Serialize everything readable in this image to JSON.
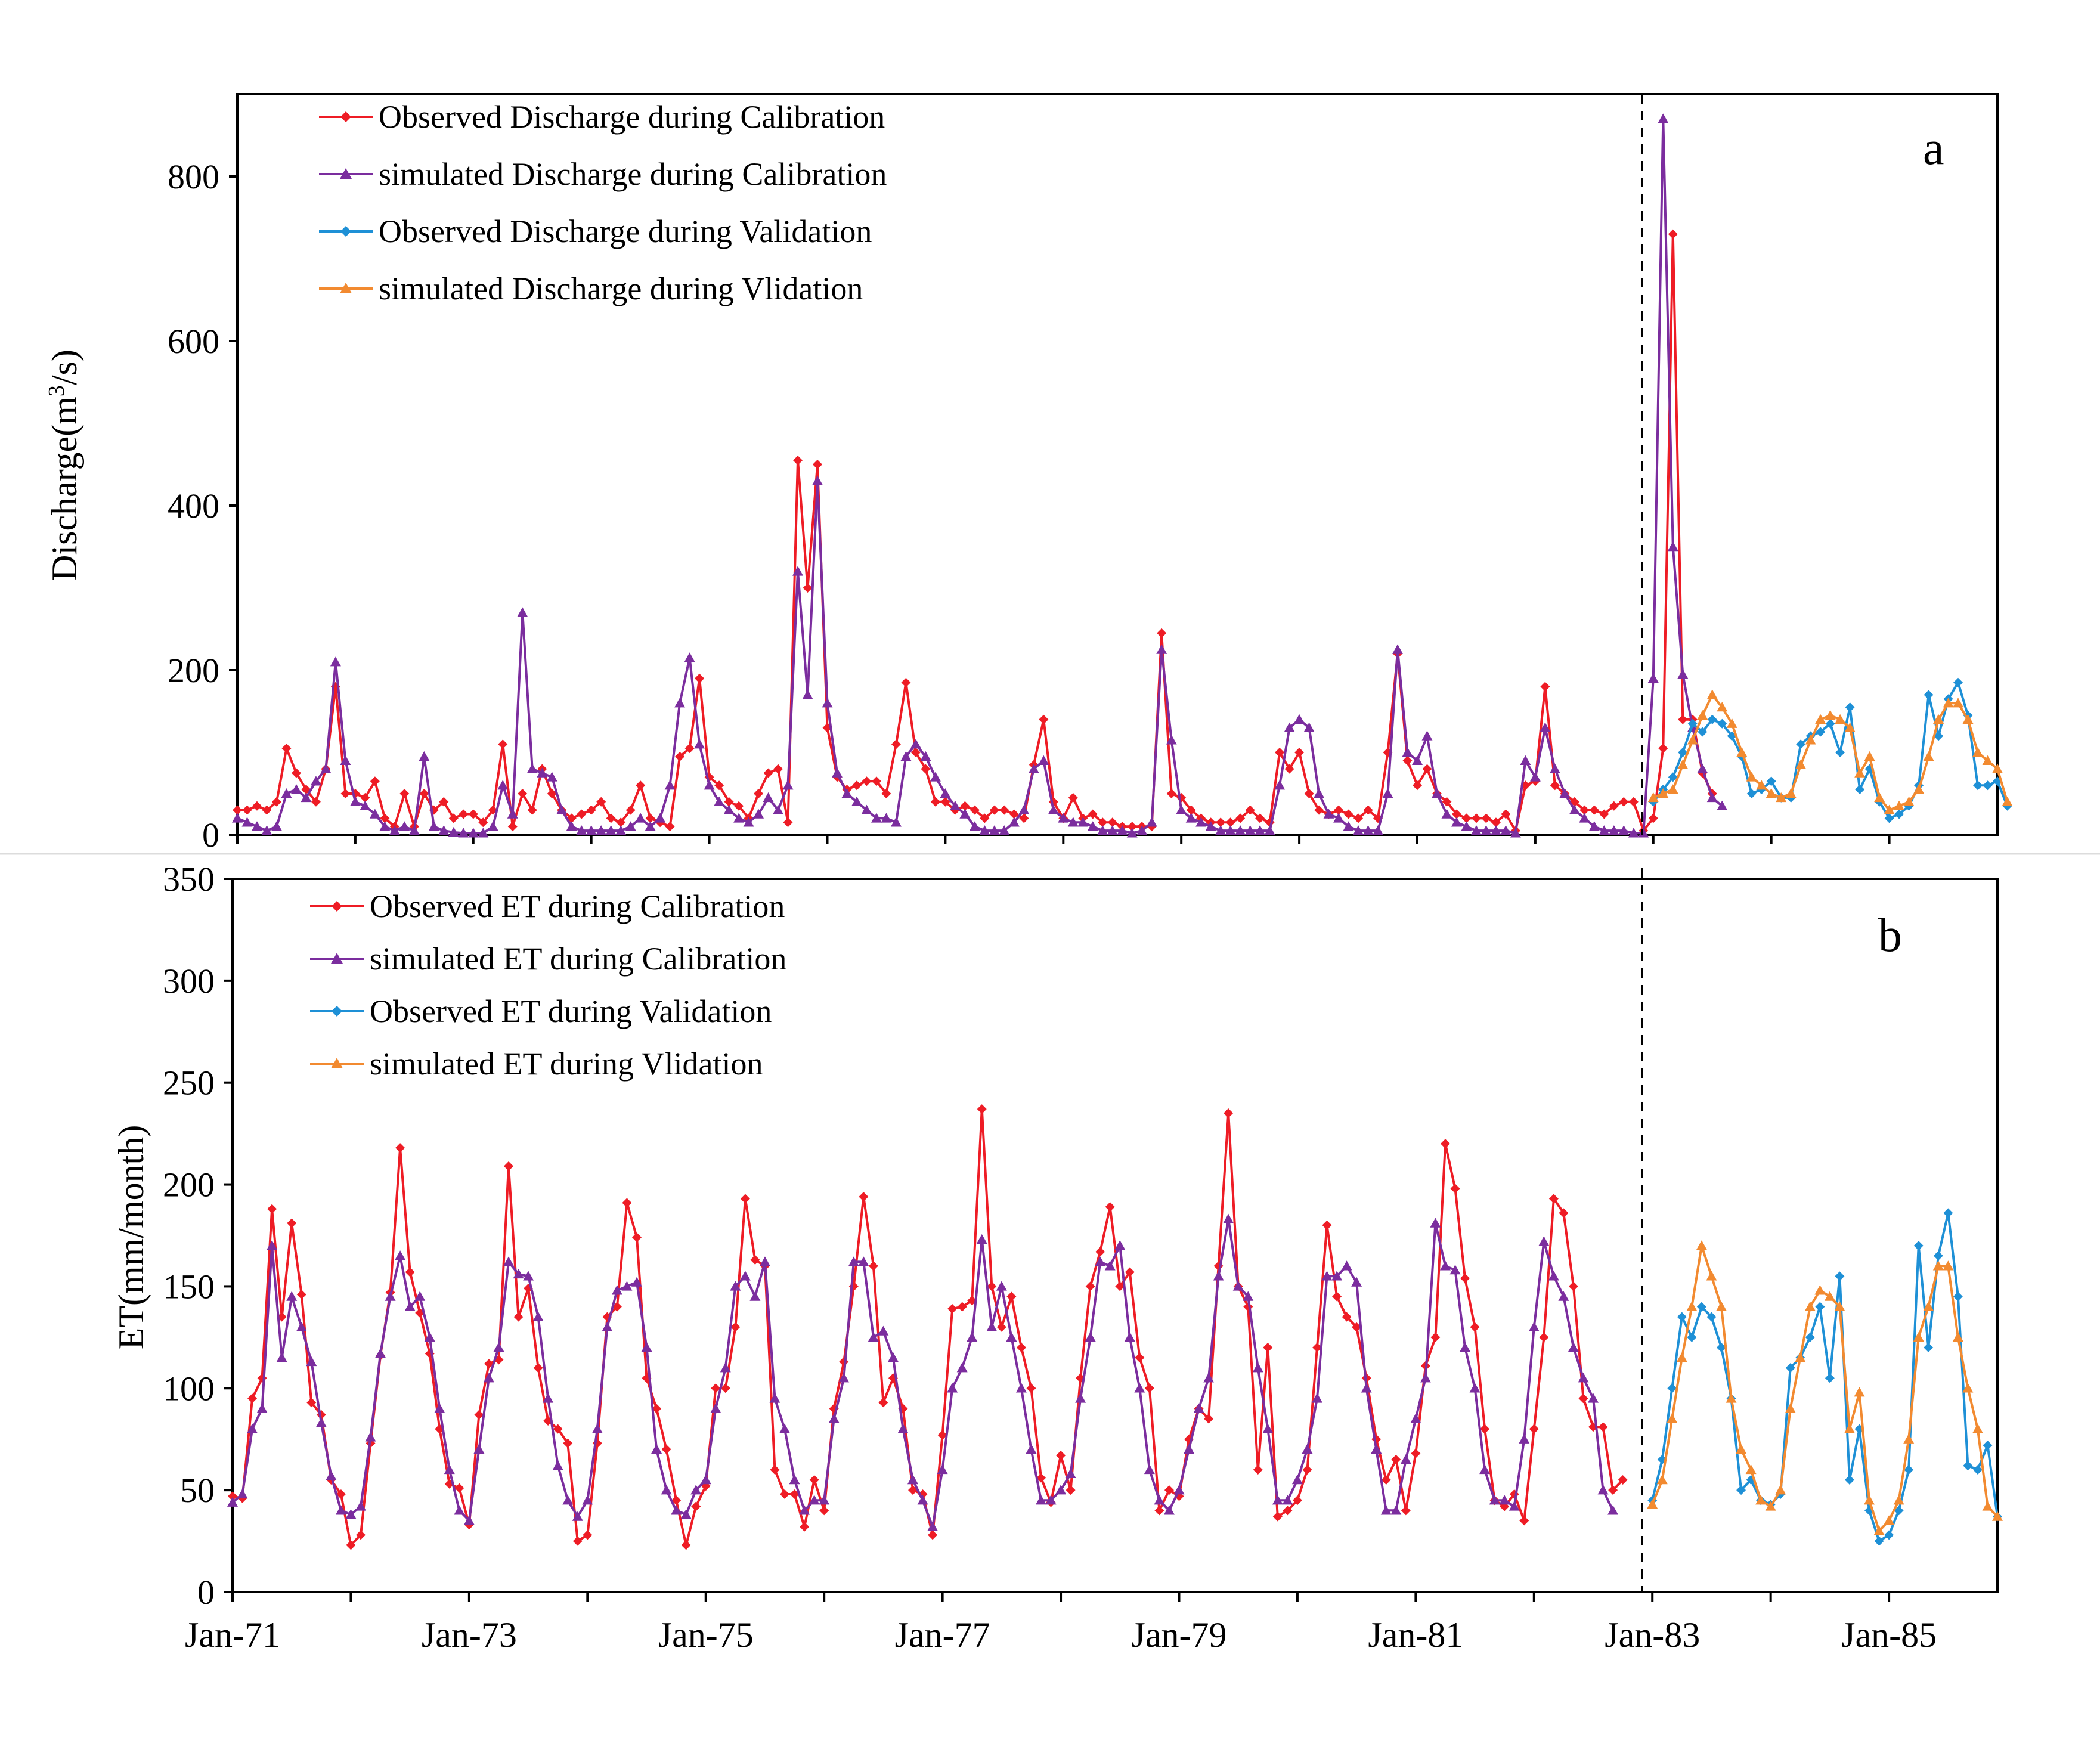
{
  "chart_data": [
    {
      "type": "line",
      "panel_label": "a",
      "ylabel_main": "Discharge(m",
      "ylabel_sup": "3",
      "ylabel_tail": "/s)",
      "ylim": [
        0,
        900
      ],
      "yticks": [
        "0",
        "200",
        "400",
        "600",
        "800"
      ],
      "ytick_values": [
        0,
        200,
        400,
        600,
        800
      ],
      "x_range_months": [
        "Jan-71",
        "Dec-85"
      ],
      "split_at": "Jan-83",
      "legend_position": "top-left",
      "series": [
        {
          "name": "Observed Discharge during Calibration",
          "color": "#ee1c25",
          "marker": "diamond",
          "start": "Jan-71",
          "values": [
            30,
            30,
            35,
            30,
            40,
            105,
            75,
            55,
            40,
            80,
            180,
            50,
            50,
            45,
            65,
            20,
            10,
            50,
            10,
            50,
            30,
            40,
            20,
            25,
            25,
            15,
            30,
            110,
            10,
            50,
            30,
            80,
            50,
            30,
            20,
            25,
            30,
            40,
            20,
            15,
            30,
            60,
            20,
            15,
            10,
            95,
            105,
            190,
            70,
            60,
            40,
            35,
            20,
            50,
            75,
            80,
            15,
            455,
            300,
            450,
            130,
            70,
            55,
            60,
            65,
            65,
            50,
            110,
            185,
            100,
            80,
            40,
            40,
            30,
            35,
            30,
            20,
            30,
            30,
            25,
            20,
            85,
            140,
            40,
            20,
            45,
            20,
            25,
            15,
            15,
            10,
            10,
            10,
            10,
            245,
            50,
            45,
            30,
            20,
            15,
            15,
            15,
            20,
            30,
            20,
            15,
            100,
            80,
            100,
            50,
            30,
            25,
            30,
            25,
            20,
            30,
            20,
            100,
            220,
            90,
            60,
            80,
            50,
            40,
            25,
            20,
            20,
            20,
            15,
            25,
            5,
            60,
            65,
            180,
            60,
            50,
            40,
            30,
            30,
            25,
            35,
            40,
            40,
            5,
            20,
            105,
            730,
            140,
            140,
            75,
            50
          ]
        },
        {
          "name": "simulated Discharge during Calibration",
          "color": "#7b2d9e",
          "marker": "triangle",
          "start": "Jan-71",
          "values": [
            20,
            15,
            10,
            5,
            10,
            50,
            55,
            45,
            65,
            80,
            210,
            90,
            40,
            35,
            25,
            10,
            5,
            10,
            5,
            95,
            10,
            5,
            3,
            2,
            2,
            2,
            10,
            60,
            25,
            270,
            80,
            75,
            70,
            30,
            10,
            5,
            5,
            5,
            5,
            5,
            10,
            20,
            10,
            20,
            60,
            160,
            215,
            110,
            60,
            40,
            30,
            20,
            15,
            25,
            45,
            30,
            60,
            320,
            170,
            430,
            160,
            75,
            50,
            40,
            30,
            20,
            20,
            15,
            95,
            110,
            95,
            70,
            50,
            35,
            25,
            10,
            5,
            5,
            5,
            15,
            30,
            80,
            90,
            30,
            20,
            15,
            15,
            10,
            5,
            5,
            5,
            2,
            5,
            15,
            225,
            115,
            30,
            20,
            15,
            10,
            5,
            5,
            5,
            5,
            5,
            5,
            60,
            130,
            140,
            130,
            50,
            25,
            20,
            10,
            5,
            5,
            5,
            50,
            225,
            100,
            90,
            120,
            50,
            25,
            15,
            10,
            5,
            5,
            5,
            5,
            2,
            90,
            70,
            130,
            80,
            50,
            30,
            20,
            10,
            5,
            5,
            5,
            2,
            2,
            190,
            870,
            350,
            195,
            130,
            80,
            45,
            35
          ]
        },
        {
          "name": "Observed Discharge during Validation",
          "color": "#1e90d6",
          "marker": "diamond",
          "start": "Jan-83",
          "values": [
            40,
            55,
            70,
            100,
            135,
            125,
            140,
            135,
            120,
            95,
            50,
            55,
            65,
            45,
            45,
            110,
            120,
            125,
            135,
            100,
            155,
            55,
            80,
            40,
            20,
            25,
            35,
            60,
            170,
            120,
            165,
            185,
            145,
            60,
            60,
            65,
            35
          ]
        },
        {
          "name": "simulated Discharge during Vlidation",
          "color": "#f28a30",
          "marker": "triangle",
          "start": "Jan-83",
          "values": [
            45,
            50,
            55,
            85,
            115,
            145,
            170,
            155,
            135,
            100,
            70,
            60,
            50,
            45,
            50,
            85,
            115,
            140,
            145,
            140,
            130,
            75,
            95,
            45,
            30,
            35,
            40,
            55,
            95,
            140,
            160,
            160,
            140,
            100,
            90,
            80,
            40
          ]
        }
      ]
    },
    {
      "type": "line",
      "panel_label": "b",
      "ylabel": "ET(mm/month)",
      "ylim": [
        0,
        350
      ],
      "yticks": [
        "0",
        "50",
        "100",
        "150",
        "200",
        "250",
        "300",
        "350"
      ],
      "ytick_values": [
        0,
        50,
        100,
        150,
        200,
        250,
        300,
        350
      ],
      "xtick_labels": [
        "Jan-71",
        "Jan-73",
        "Jan-75",
        "Jan-77",
        "Jan-79",
        "Jan-81",
        "Jan-83",
        "Jan-85"
      ],
      "x_range_months": [
        "Jan-71",
        "Dec-85"
      ],
      "split_at": "Jan-83",
      "legend_position": "top-left",
      "series": [
        {
          "name": "Observed ET during Calibration",
          "color": "#ee1c25",
          "marker": "diamond",
          "start": "Jan-71",
          "values": [
            47,
            46,
            95,
            105,
            188,
            135,
            181,
            146,
            93,
            87,
            55,
            48,
            23,
            28,
            73,
            116,
            147,
            218,
            157,
            137,
            117,
            80,
            53,
            51,
            33,
            87,
            112,
            114,
            209,
            135,
            149,
            110,
            84,
            80,
            73,
            25,
            28,
            73,
            135,
            140,
            191,
            174,
            105,
            90,
            70,
            45,
            23,
            42,
            52,
            100,
            100,
            130,
            193,
            163,
            160,
            60,
            48,
            48,
            32,
            55,
            40,
            90,
            113,
            150,
            194,
            160,
            93,
            105,
            90,
            50,
            48,
            28,
            77,
            139,
            140,
            143,
            237,
            150,
            130,
            145,
            120,
            100,
            56,
            44,
            67,
            50,
            105,
            150,
            167,
            189,
            150,
            157,
            115,
            100,
            40,
            50,
            47,
            75,
            90,
            85,
            160,
            235,
            150,
            140,
            60,
            120,
            37,
            40,
            45,
            60,
            120,
            180,
            145,
            135,
            130,
            105,
            75,
            55,
            65,
            40,
            68,
            111,
            125,
            220,
            198,
            154,
            130,
            80,
            45,
            42,
            48,
            35,
            80,
            125,
            193,
            186,
            150,
            95,
            81,
            81,
            50,
            55
          ]
        },
        {
          "name": "simulated ET during Calibration",
          "color": "#7b2d9e",
          "marker": "triangle",
          "start": "Jan-71",
          "values": [
            44,
            48,
            80,
            90,
            170,
            115,
            145,
            130,
            113,
            83,
            57,
            40,
            38,
            42,
            76,
            117,
            145,
            165,
            140,
            145,
            125,
            90,
            60,
            40,
            35,
            70,
            105,
            120,
            162,
            156,
            155,
            135,
            95,
            62,
            45,
            37,
            45,
            80,
            130,
            148,
            150,
            152,
            120,
            70,
            50,
            40,
            38,
            50,
            55,
            90,
            110,
            150,
            155,
            145,
            162,
            95,
            80,
            55,
            40,
            45,
            45,
            85,
            105,
            162,
            162,
            125,
            128,
            115,
            80,
            55,
            45,
            32,
            60,
            100,
            110,
            125,
            173,
            130,
            150,
            125,
            100,
            70,
            45,
            45,
            50,
            58,
            95,
            125,
            162,
            160,
            170,
            125,
            100,
            60,
            45,
            40,
            50,
            70,
            90,
            105,
            155,
            183,
            150,
            145,
            110,
            80,
            45,
            45,
            55,
            70,
            95,
            155,
            155,
            160,
            152,
            100,
            70,
            40,
            40,
            65,
            85,
            105,
            181,
            160,
            158,
            120,
            100,
            60,
            45,
            45,
            42,
            75,
            130,
            172,
            155,
            145,
            120,
            105,
            95,
            50,
            40
          ]
        },
        {
          "name": "Observed ET during Validation",
          "color": "#1e90d6",
          "marker": "diamond",
          "start": "Jan-83",
          "values": [
            45,
            65,
            100,
            135,
            125,
            140,
            135,
            120,
            95,
            50,
            55,
            45,
            43,
            48,
            110,
            115,
            125,
            140,
            105,
            155,
            55,
            80,
            40,
            25,
            28,
            40,
            60,
            170,
            120,
            165,
            186,
            145,
            62,
            60,
            72,
            37
          ]
        },
        {
          "name": "simulated ET during Vlidation",
          "color": "#f28a30",
          "marker": "triangle",
          "start": "Jan-83",
          "values": [
            43,
            55,
            85,
            115,
            140,
            170,
            155,
            140,
            95,
            70,
            60,
            45,
            42,
            50,
            90,
            115,
            140,
            148,
            145,
            140,
            80,
            98,
            45,
            30,
            35,
            45,
            75,
            125,
            140,
            160,
            160,
            125,
            100,
            80,
            42,
            37
          ]
        }
      ]
    }
  ]
}
